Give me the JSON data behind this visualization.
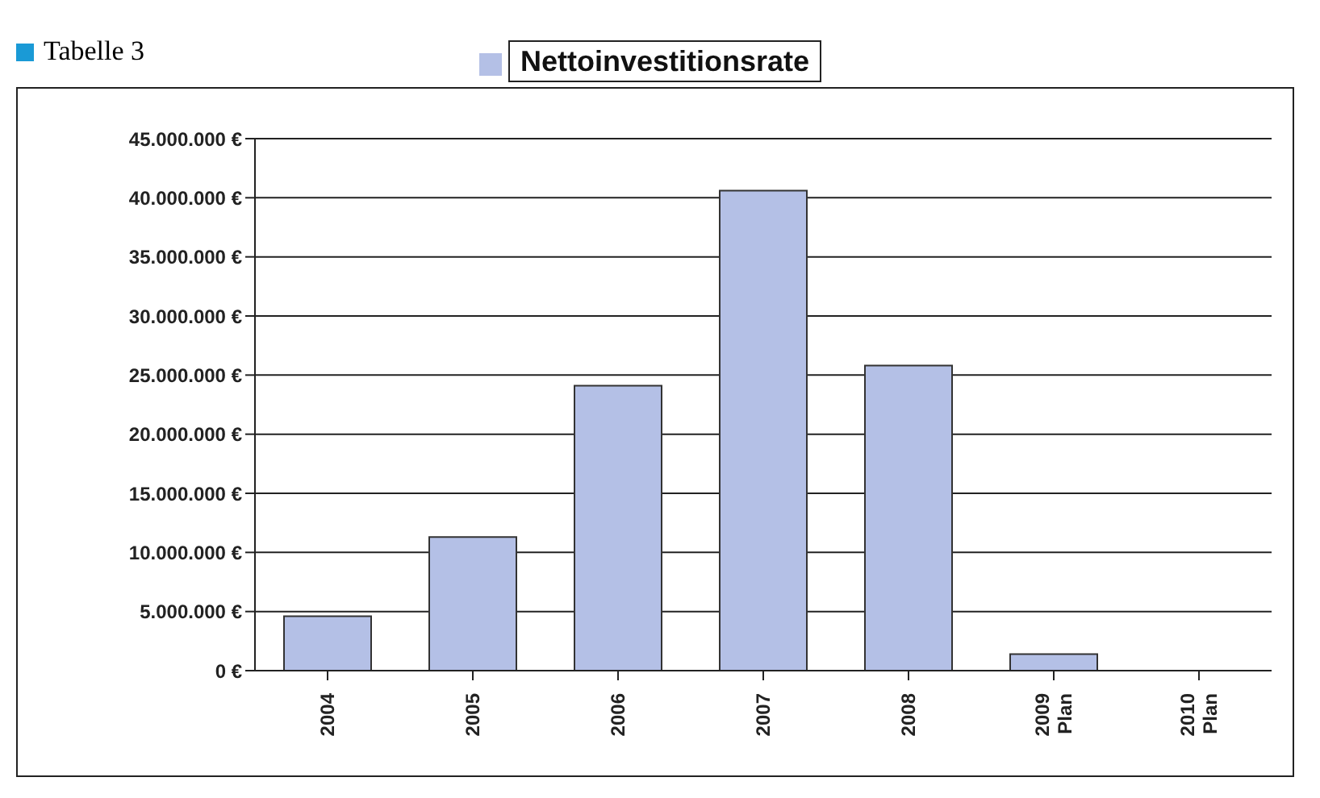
{
  "chart_data": {
    "type": "bar",
    "title": "Tabelle 3",
    "categories": [
      "2004",
      "2005",
      "2006",
      "2007",
      "2008",
      "2009 Plan",
      "2010 Plan"
    ],
    "series": [
      {
        "name": "Nettoinvestitionsrate",
        "color": "#b4c0e6",
        "values": [
          4600000,
          11300000,
          24100000,
          40600000,
          25800000,
          1400000,
          0
        ]
      }
    ],
    "ylim": [
      0,
      45000000
    ],
    "yticks": [
      {
        "value": 0,
        "label": "0 €"
      },
      {
        "value": 5000000,
        "label": "5.000.000 €"
      },
      {
        "value": 10000000,
        "label": "10.000.000 €"
      },
      {
        "value": 15000000,
        "label": "15.000.000 €"
      },
      {
        "value": 20000000,
        "label": "20.000.000 €"
      },
      {
        "value": 25000000,
        "label": "25.000.000 €"
      },
      {
        "value": 30000000,
        "label": "30.000.000 €"
      },
      {
        "value": 35000000,
        "label": "35.000.000 €"
      },
      {
        "value": 40000000,
        "label": "40.000.000 €"
      },
      {
        "value": 45000000,
        "label": "45.000.000 €"
      }
    ],
    "grid": "y",
    "legend": "top"
  }
}
